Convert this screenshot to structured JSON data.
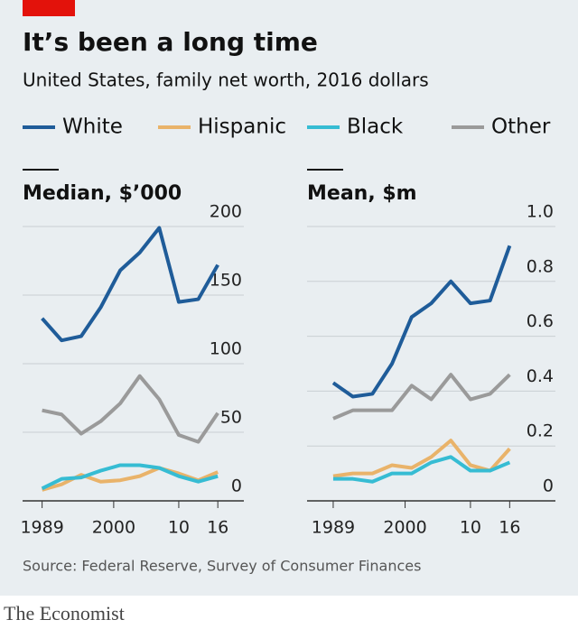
{
  "title": "It’s been a long time",
  "subtitle": "United States, family net worth, 2016 dollars",
  "source": "Source: Federal Reserve, Survey of Consumer Finances",
  "brand": "The Economist",
  "chart_data": [
    {
      "type": "line",
      "title": "Median, $’000",
      "x": [
        1989,
        1992,
        1995,
        1998,
        2001,
        2004,
        2007,
        2010,
        2013,
        2016
      ],
      "xlim": [
        1986,
        2020
      ],
      "xticks": [
        1989,
        2000,
        {
          "value": 2010,
          "label": "10"
        },
        {
          "value": 2016,
          "label": "16"
        }
      ],
      "ylim": [
        0,
        200
      ],
      "yticks": [
        0,
        50,
        100,
        150,
        200
      ],
      "grid": true,
      "series": [
        {
          "name": "White",
          "color": "#1f5c99",
          "values": [
            133,
            117,
            120,
            141,
            168,
            181,
            199,
            145,
            147,
            172
          ]
        },
        {
          "name": "Hispanic",
          "color": "#e9b36a",
          "values": [
            8,
            12,
            19,
            14,
            15,
            18,
            24,
            20,
            15,
            21
          ]
        },
        {
          "name": "Black",
          "color": "#36bcd3",
          "values": [
            9,
            16,
            17,
            22,
            26,
            26,
            24,
            18,
            14,
            18
          ]
        },
        {
          "name": "Other",
          "color": "#9a9a9a",
          "values": [
            66,
            63,
            49,
            58,
            71,
            91,
            74,
            48,
            43,
            64
          ]
        }
      ]
    },
    {
      "type": "line",
      "title": "Mean, $m",
      "x": [
        1989,
        1992,
        1995,
        1998,
        2001,
        2004,
        2007,
        2010,
        2013,
        2016
      ],
      "xlim": [
        1985,
        2023
      ],
      "xticks": [
        1989,
        2000,
        {
          "value": 2010,
          "label": "10"
        },
        {
          "value": 2016,
          "label": "16"
        }
      ],
      "ylim": [
        0,
        1
      ],
      "yticks": [
        0,
        0.2,
        0.4,
        0.6,
        0.8,
        {
          "value": 1,
          "label": "1.0"
        }
      ],
      "grid": true,
      "series": [
        {
          "color": "#1f5c99",
          "values": [
            0.43,
            0.38,
            0.39,
            0.5,
            0.67,
            0.72,
            0.8,
            0.72,
            0.73,
            0.93
          ]
        },
        {
          "color": "#e9b36a",
          "values": [
            0.09,
            0.1,
            0.1,
            0.13,
            0.12,
            0.16,
            0.22,
            0.13,
            0.11,
            0.19
          ]
        },
        {
          "color": "#36bcd3",
          "values": [
            0.08,
            0.08,
            0.07,
            0.1,
            0.1,
            0.14,
            0.16,
            0.11,
            0.11,
            0.14
          ]
        },
        {
          "color": "#9a9a9a",
          "values": [
            0.3,
            0.33,
            0.33,
            0.33,
            0.42,
            0.37,
            0.46,
            0.37,
            0.39,
            0.46
          ]
        }
      ]
    }
  ]
}
